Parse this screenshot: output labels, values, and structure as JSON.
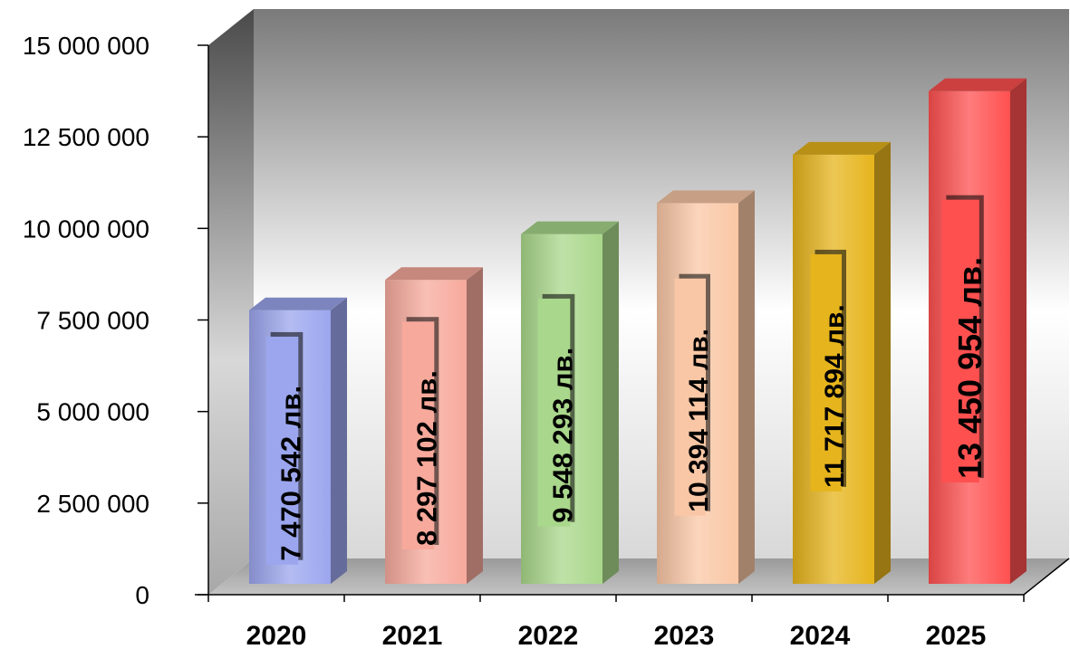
{
  "chart_data": {
    "type": "bar",
    "title": "",
    "xlabel": "",
    "ylabel": "",
    "categories": [
      "2020",
      "2021",
      "2022",
      "2023",
      "2024",
      "2025"
    ],
    "values": [
      7470542,
      8297102,
      9548293,
      10394114,
      11717894,
      13450954
    ],
    "data_labels": [
      "7 470 542 лв.",
      "8 297 102 лв.",
      "9 548 293 лв.",
      "10 394 114 лв.",
      "11 717 894 лв.",
      "13 450 954 лв."
    ],
    "ylim": [
      0,
      15000000
    ],
    "yticks": [
      0,
      2500000,
      5000000,
      7500000,
      10000000,
      12500000,
      15000000
    ],
    "ytick_labels": [
      "0",
      "2 500 000",
      "5 000 000",
      "7 500 000",
      "10 000 000",
      "12 500 000",
      "15 000 000"
    ],
    "bar_colors": [
      "#9ba6ee",
      "#f7a99c",
      "#a9d78b",
      "#f9c7a5",
      "#e6b41c",
      "#ff5050"
    ],
    "grid": false,
    "legend": "none"
  }
}
